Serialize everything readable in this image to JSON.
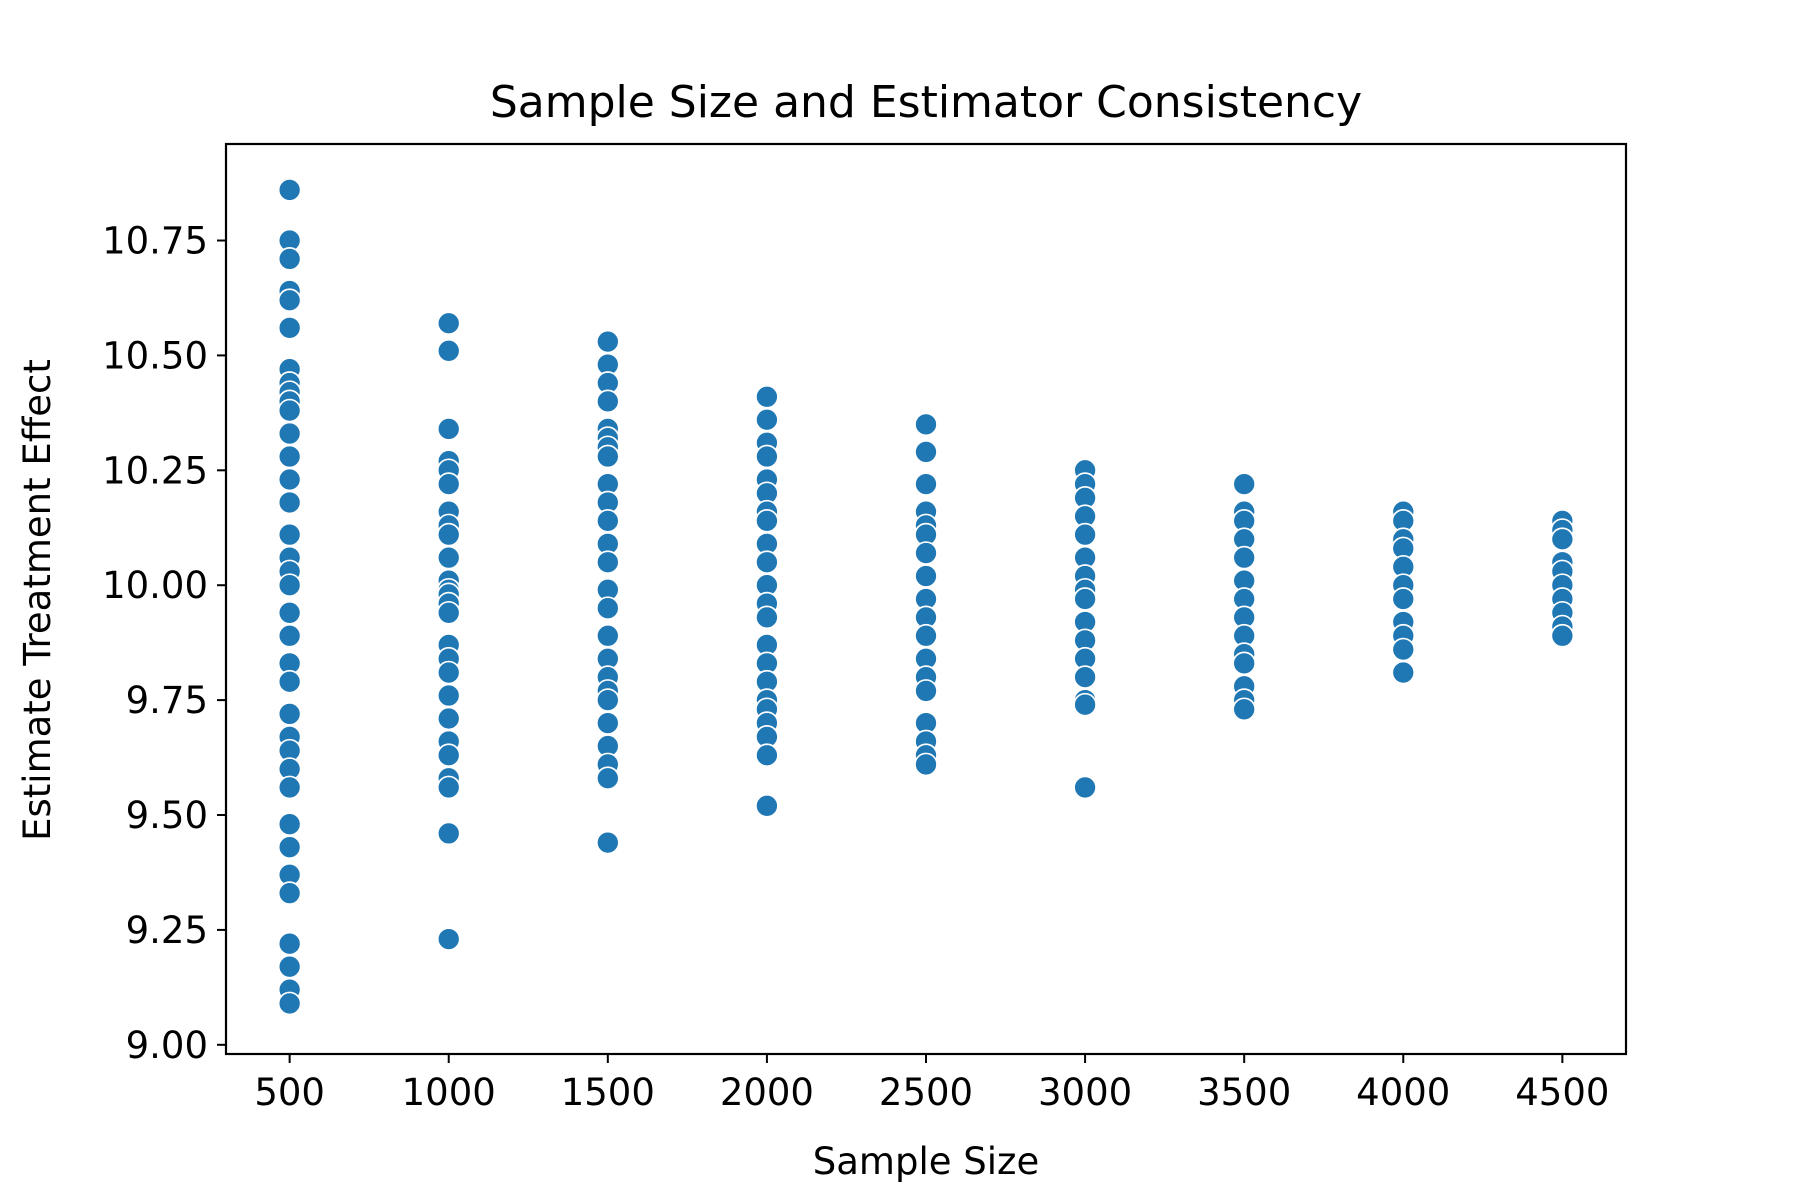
{
  "chart_data": {
    "type": "scatter",
    "title": "Sample Size and Estimator Consistency",
    "xlabel": "Sample Size",
    "ylabel": "Estimate Treatment Effect",
    "xlim": [
      300,
      4700
    ],
    "ylim": [
      8.98,
      10.96
    ],
    "x_ticks": [
      500,
      1000,
      1500,
      2000,
      2500,
      3000,
      3500,
      4000,
      4500
    ],
    "y_ticks": [
      9.0,
      9.25,
      9.5,
      9.75,
      10.0,
      10.25,
      10.5,
      10.75
    ],
    "y_tick_labels": [
      "9.00",
      "9.25",
      "9.50",
      "9.75",
      "10.00",
      "10.25",
      "10.50",
      "10.75"
    ],
    "grid": false,
    "marker_color": "#1f77b4",
    "marker_edge_color": "#ffffff",
    "series": [
      {
        "points": [
          [
            500,
            10.86
          ],
          [
            500,
            10.75
          ],
          [
            500,
            10.71
          ],
          [
            500,
            10.64
          ],
          [
            500,
            10.62
          ],
          [
            500,
            10.56
          ],
          [
            500,
            10.47
          ],
          [
            500,
            10.44
          ],
          [
            500,
            10.42
          ],
          [
            500,
            10.4
          ],
          [
            500,
            10.38
          ],
          [
            500,
            10.33
          ],
          [
            500,
            10.28
          ],
          [
            500,
            10.23
          ],
          [
            500,
            10.18
          ],
          [
            500,
            10.11
          ],
          [
            500,
            10.06
          ],
          [
            500,
            10.03
          ],
          [
            500,
            10.0
          ],
          [
            500,
            9.94
          ],
          [
            500,
            9.89
          ],
          [
            500,
            9.83
          ],
          [
            500,
            9.79
          ],
          [
            500,
            9.72
          ],
          [
            500,
            9.67
          ],
          [
            500,
            9.64
          ],
          [
            500,
            9.6
          ],
          [
            500,
            9.56
          ],
          [
            500,
            9.48
          ],
          [
            500,
            9.43
          ],
          [
            500,
            9.37
          ],
          [
            500,
            9.33
          ],
          [
            500,
            9.22
          ],
          [
            500,
            9.17
          ],
          [
            500,
            9.12
          ],
          [
            500,
            9.09
          ],
          [
            1000,
            10.57
          ],
          [
            1000,
            10.51
          ],
          [
            1000,
            10.34
          ],
          [
            1000,
            10.27
          ],
          [
            1000,
            10.25
          ],
          [
            1000,
            10.22
          ],
          [
            1000,
            10.16
          ],
          [
            1000,
            10.13
          ],
          [
            1000,
            10.11
          ],
          [
            1000,
            10.06
          ],
          [
            1000,
            10.01
          ],
          [
            1000,
            9.99
          ],
          [
            1000,
            9.98
          ],
          [
            1000,
            9.96
          ],
          [
            1000,
            9.94
          ],
          [
            1000,
            9.87
          ],
          [
            1000,
            9.84
          ],
          [
            1000,
            9.81
          ],
          [
            1000,
            9.76
          ],
          [
            1000,
            9.71
          ],
          [
            1000,
            9.66
          ],
          [
            1000,
            9.63
          ],
          [
            1000,
            9.58
          ],
          [
            1000,
            9.56
          ],
          [
            1000,
            9.46
          ],
          [
            1000,
            9.23
          ],
          [
            1500,
            10.53
          ],
          [
            1500,
            10.48
          ],
          [
            1500,
            10.44
          ],
          [
            1500,
            10.4
          ],
          [
            1500,
            10.34
          ],
          [
            1500,
            10.32
          ],
          [
            1500,
            10.3
          ],
          [
            1500,
            10.28
          ],
          [
            1500,
            10.22
          ],
          [
            1500,
            10.18
          ],
          [
            1500,
            10.14
          ],
          [
            1500,
            10.09
          ],
          [
            1500,
            10.05
          ],
          [
            1500,
            9.99
          ],
          [
            1500,
            9.95
          ],
          [
            1500,
            9.89
          ],
          [
            1500,
            9.84
          ],
          [
            1500,
            9.8
          ],
          [
            1500,
            9.77
          ],
          [
            1500,
            9.75
          ],
          [
            1500,
            9.7
          ],
          [
            1500,
            9.65
          ],
          [
            1500,
            9.61
          ],
          [
            1500,
            9.58
          ],
          [
            1500,
            9.44
          ],
          [
            2000,
            10.41
          ],
          [
            2000,
            10.36
          ],
          [
            2000,
            10.31
          ],
          [
            2000,
            10.28
          ],
          [
            2000,
            10.23
          ],
          [
            2000,
            10.2
          ],
          [
            2000,
            10.16
          ],
          [
            2000,
            10.14
          ],
          [
            2000,
            10.09
          ],
          [
            2000,
            10.05
          ],
          [
            2000,
            10.0
          ],
          [
            2000,
            9.96
          ],
          [
            2000,
            9.93
          ],
          [
            2000,
            9.87
          ],
          [
            2000,
            9.83
          ],
          [
            2000,
            9.79
          ],
          [
            2000,
            9.75
          ],
          [
            2000,
            9.73
          ],
          [
            2000,
            9.7
          ],
          [
            2000,
            9.67
          ],
          [
            2000,
            9.63
          ],
          [
            2000,
            9.52
          ],
          [
            2500,
            10.35
          ],
          [
            2500,
            10.29
          ],
          [
            2500,
            10.22
          ],
          [
            2500,
            10.16
          ],
          [
            2500,
            10.13
          ],
          [
            2500,
            10.11
          ],
          [
            2500,
            10.07
          ],
          [
            2500,
            10.02
          ],
          [
            2500,
            9.97
          ],
          [
            2500,
            9.93
          ],
          [
            2500,
            9.89
          ],
          [
            2500,
            9.84
          ],
          [
            2500,
            9.8
          ],
          [
            2500,
            9.77
          ],
          [
            2500,
            9.7
          ],
          [
            2500,
            9.66
          ],
          [
            2500,
            9.63
          ],
          [
            2500,
            9.61
          ],
          [
            3000,
            10.25
          ],
          [
            3000,
            10.22
          ],
          [
            3000,
            10.19
          ],
          [
            3000,
            10.15
          ],
          [
            3000,
            10.11
          ],
          [
            3000,
            10.06
          ],
          [
            3000,
            10.02
          ],
          [
            3000,
            9.99
          ],
          [
            3000,
            9.97
          ],
          [
            3000,
            9.92
          ],
          [
            3000,
            9.88
          ],
          [
            3000,
            9.84
          ],
          [
            3000,
            9.8
          ],
          [
            3000,
            9.75
          ],
          [
            3000,
            9.74
          ],
          [
            3000,
            9.56
          ],
          [
            3500,
            10.22
          ],
          [
            3500,
            10.16
          ],
          [
            3500,
            10.14
          ],
          [
            3500,
            10.1
          ],
          [
            3500,
            10.06
          ],
          [
            3500,
            10.01
          ],
          [
            3500,
            9.97
          ],
          [
            3500,
            9.93
          ],
          [
            3500,
            9.89
          ],
          [
            3500,
            9.85
          ],
          [
            3500,
            9.83
          ],
          [
            3500,
            9.78
          ],
          [
            3500,
            9.75
          ],
          [
            3500,
            9.73
          ],
          [
            4000,
            10.16
          ],
          [
            4000,
            10.14
          ],
          [
            4000,
            10.1
          ],
          [
            4000,
            10.08
          ],
          [
            4000,
            10.04
          ],
          [
            4000,
            10.0
          ],
          [
            4000,
            9.97
          ],
          [
            4000,
            9.92
          ],
          [
            4000,
            9.89
          ],
          [
            4000,
            9.86
          ],
          [
            4000,
            9.81
          ],
          [
            4500,
            10.14
          ],
          [
            4500,
            10.12
          ],
          [
            4500,
            10.1
          ],
          [
            4500,
            10.05
          ],
          [
            4500,
            10.03
          ],
          [
            4500,
            10.0
          ],
          [
            4500,
            9.97
          ],
          [
            4500,
            9.94
          ],
          [
            4500,
            9.91
          ],
          [
            4500,
            9.89
          ]
        ]
      }
    ]
  }
}
